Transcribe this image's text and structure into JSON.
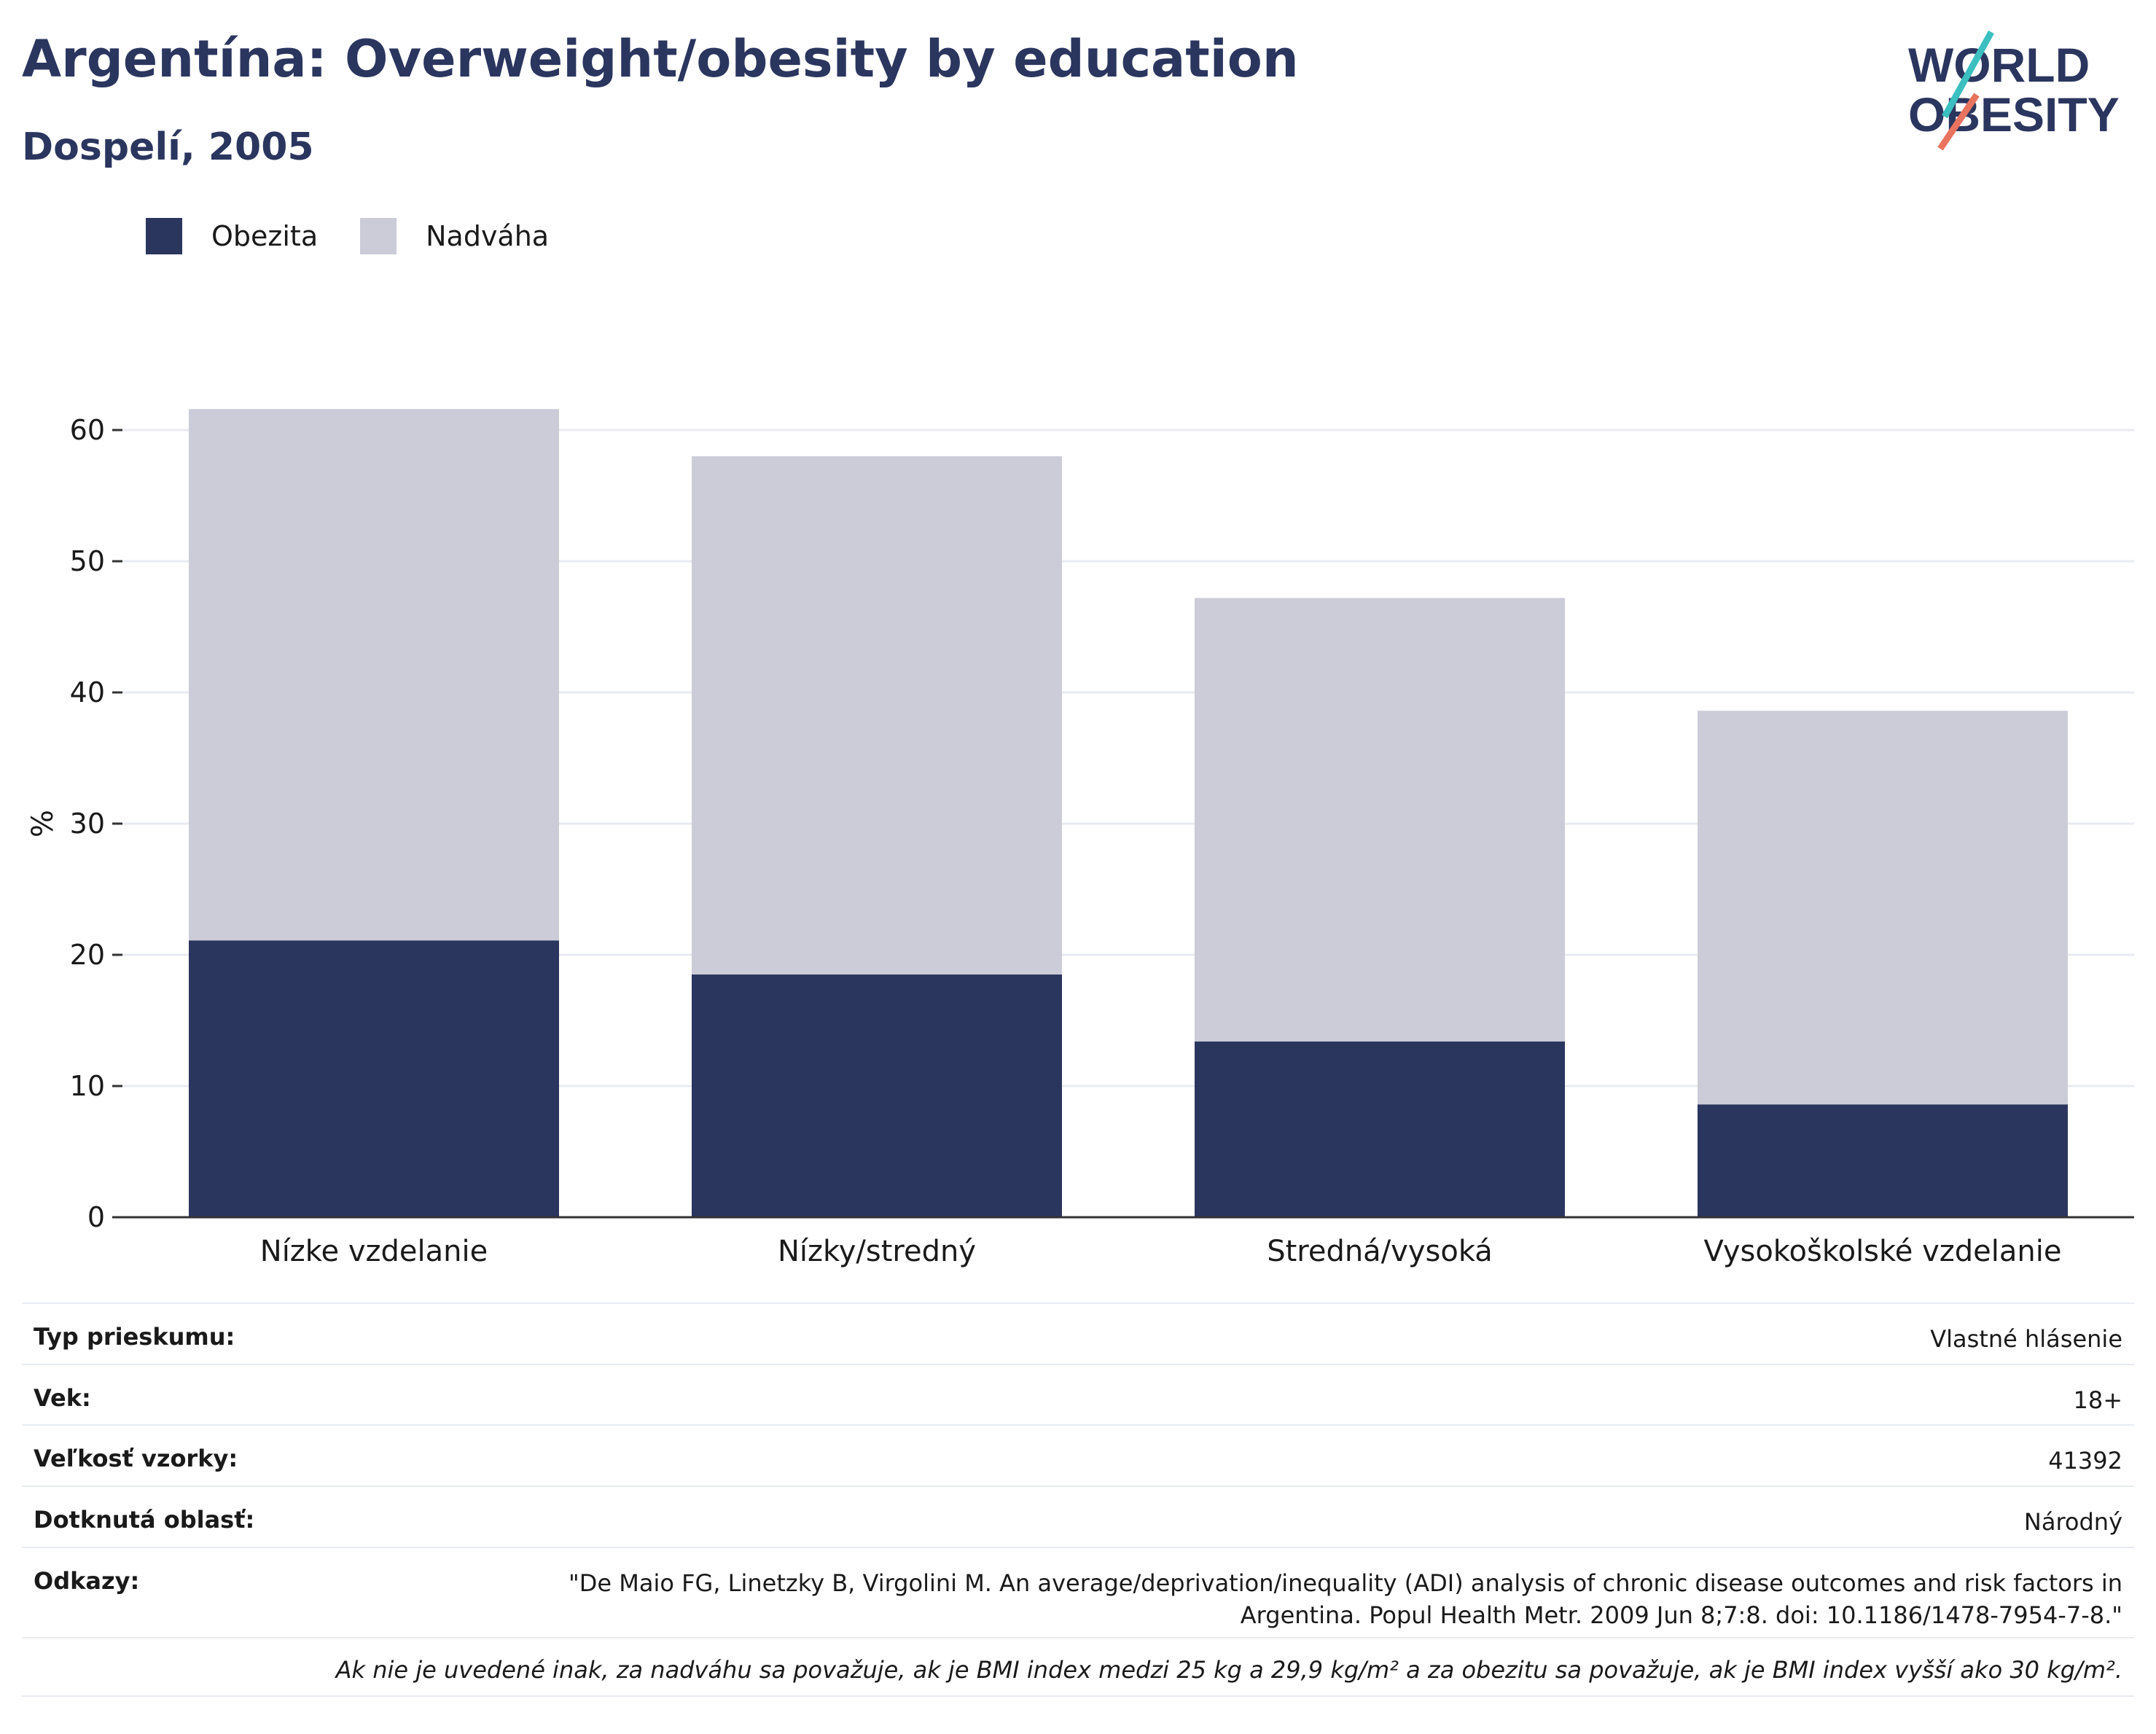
{
  "header": {
    "title": "Argentína: Overweight/obesity by education",
    "subtitle": "Dospelí, 2005"
  },
  "logo": {
    "line1": "WORLD",
    "line2": "OBESITY"
  },
  "legend": [
    {
      "label": "Obezita",
      "color": "#2b365f"
    },
    {
      "label": "Nadváha",
      "color": "#cbccd8"
    }
  ],
  "chart_data": {
    "type": "bar",
    "stacked": true,
    "categories": [
      "Nízke vzdelanie",
      "Nízky/stredný",
      "Stredná/vysoká",
      "Vysokoškolské vzdelanie"
    ],
    "series": [
      {
        "name": "Obezita",
        "values": [
          21.1,
          18.5,
          13.4,
          8.6
        ],
        "color": "#2b365f"
      },
      {
        "name": "Nadváha",
        "values": [
          40.5,
          39.5,
          33.8,
          30.0
        ],
        "color": "#cbccd8"
      }
    ],
    "ylabel": "%",
    "ylim": [
      0,
      65
    ],
    "yticks": [
      0,
      10,
      20,
      30,
      40,
      50,
      60
    ],
    "grid": true,
    "legend_position": "top-left"
  },
  "meta": [
    {
      "key": "Typ prieskumu:",
      "value": "Vlastné hlásenie"
    },
    {
      "key": "Vek:",
      "value": "18+"
    },
    {
      "key": "Veľkosť vzorky:",
      "value": "41392"
    },
    {
      "key": "Dotknutá oblasť:",
      "value": "Národný"
    },
    {
      "key": "Odkazy:",
      "value": "\"De Maio FG, Linetzky B, Virgolini M. An average/deprivation/inequality (ADI) analysis of chronic disease outcomes and risk factors in Argentina. Popul Health Metr. 2009 Jun 8;7:8. doi: 10.1186/1478-7954-7-8.\""
    }
  ],
  "note": "Ak nie je uvedené inak, za nadváhu sa považuje, ak je BMI index medzi 25 kg a 29,9 kg/m² a za obezitu sa považuje, ak je BMI index vyšší ako 30 kg/m²."
}
